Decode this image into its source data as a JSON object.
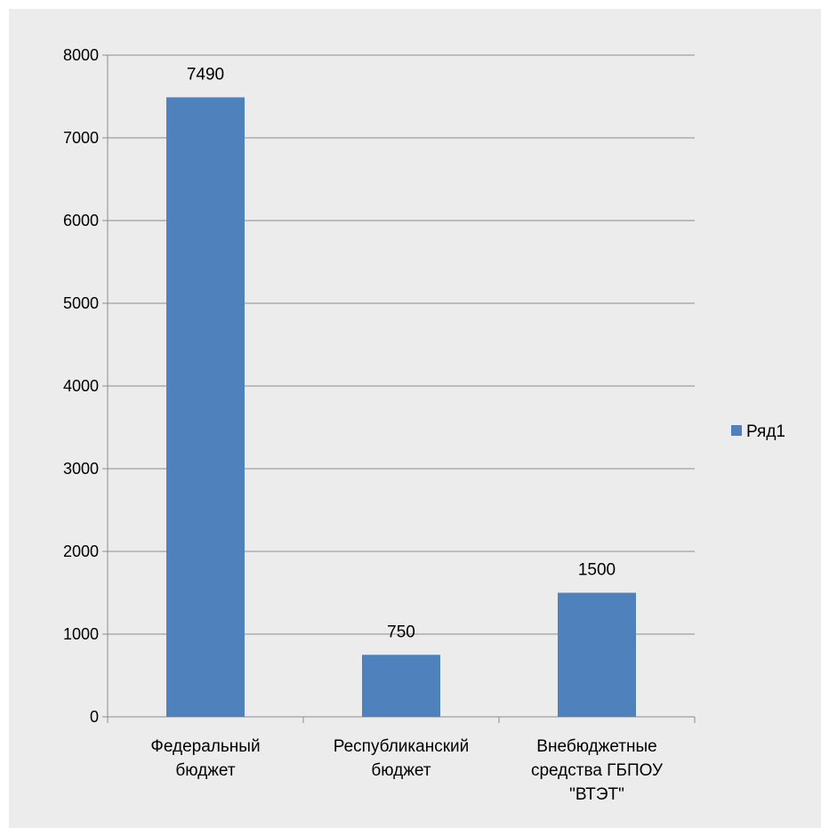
{
  "chart_data": {
    "type": "bar",
    "categories": [
      [
        "Федеральный",
        "бюджет"
      ],
      [
        "Республиканский",
        "бюджет"
      ],
      [
        "Внебюджетные",
        "средства ГБПОУ",
        "\"ВТЭТ\""
      ]
    ],
    "series": [
      {
        "name": "Ряд1",
        "values": [
          7490,
          750,
          1500
        ],
        "color": "#4f81bd"
      }
    ],
    "data_labels": [
      "7490",
      "750",
      "1500"
    ],
    "y_ticks": [
      0,
      1000,
      2000,
      3000,
      4000,
      5000,
      6000,
      7000,
      8000
    ],
    "ylim": [
      0,
      8000
    ],
    "grid": true,
    "legend_position": "right",
    "title": "",
    "xlabel": "",
    "ylabel": ""
  },
  "colors": {
    "background": "#ececec",
    "bar": "#4f81bd",
    "gridline": "#8c8c8c"
  }
}
